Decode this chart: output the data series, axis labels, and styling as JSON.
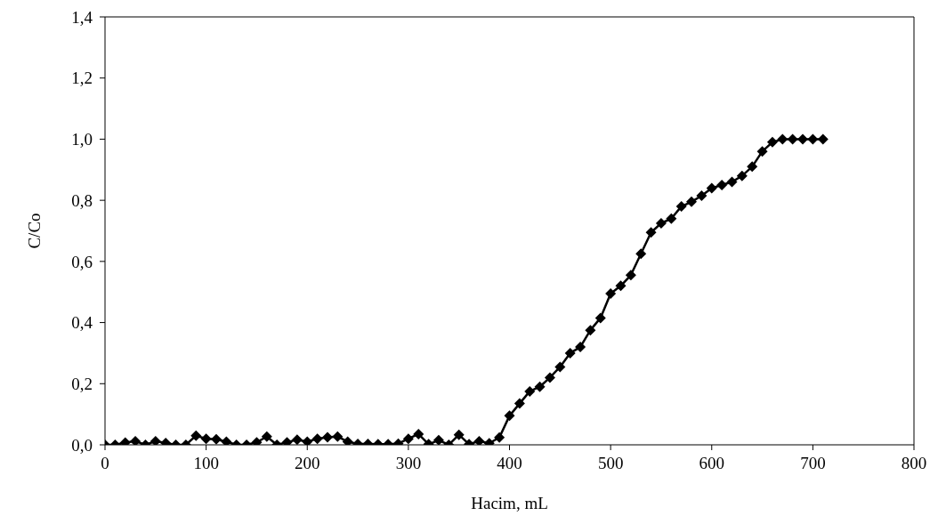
{
  "chart_data": {
    "type": "line",
    "xlabel": "Hacim, mL",
    "ylabel": "C/Co",
    "x": [
      0,
      10,
      20,
      30,
      40,
      50,
      60,
      70,
      80,
      90,
      100,
      110,
      120,
      130,
      140,
      150,
      160,
      170,
      180,
      190,
      200,
      210,
      220,
      230,
      240,
      250,
      260,
      270,
      280,
      290,
      300,
      310,
      320,
      330,
      340,
      350,
      360,
      370,
      380,
      390,
      400,
      410,
      420,
      430,
      440,
      450,
      460,
      470,
      480,
      490,
      500,
      510,
      520,
      530,
      540,
      550,
      560,
      570,
      580,
      590,
      600,
      610,
      620,
      630,
      640,
      650,
      660,
      670,
      680,
      690,
      700,
      710
    ],
    "series": [
      {
        "color": "#000000",
        "values": [
          0,
          0,
          0.007,
          0.012,
          0,
          0.012,
          0.006,
          0,
          0,
          0.03,
          0.02,
          0.018,
          0.01,
          0,
          0,
          0.008,
          0.027,
          0,
          0.008,
          0.017,
          0.01,
          0.02,
          0.025,
          0.027,
          0.01,
          0.003,
          0.003,
          0.002,
          0.002,
          0.004,
          0.02,
          0.035,
          0.002,
          0.015,
          0,
          0.033,
          0.002,
          0.012,
          0.005,
          0.024,
          0.095,
          0.135,
          0.175,
          0.19,
          0.22,
          0.255,
          0.3,
          0.32,
          0.375,
          0.415,
          0.495,
          0.52,
          0.555,
          0.625,
          0.695,
          0.725,
          0.74,
          0.78,
          0.795,
          0.815,
          0.84,
          0.85,
          0.86,
          0.88,
          0.91,
          0.96,
          0.99,
          1,
          1,
          1,
          1,
          1
        ]
      }
    ],
    "xlim": [
      0,
      800
    ],
    "xticks": [
      0,
      100,
      200,
      300,
      400,
      500,
      600,
      700,
      800
    ],
    "ylim": [
      0,
      1.4
    ],
    "yticks": [
      {
        "value": 0,
        "label": "0,0"
      },
      {
        "value": 0.2,
        "label": "0,2"
      },
      {
        "value": 0.4,
        "label": "0,4"
      },
      {
        "value": 0.6,
        "label": "0,6"
      },
      {
        "value": 0.8,
        "label": "0,8"
      },
      {
        "value": 1,
        "label": "1,0"
      },
      {
        "value": 1.2,
        "label": "1,2"
      },
      {
        "value": 1.4,
        "label": "1,4"
      }
    ],
    "marker": "diamond",
    "line_style": "solid",
    "grid": false,
    "legend": false
  }
}
